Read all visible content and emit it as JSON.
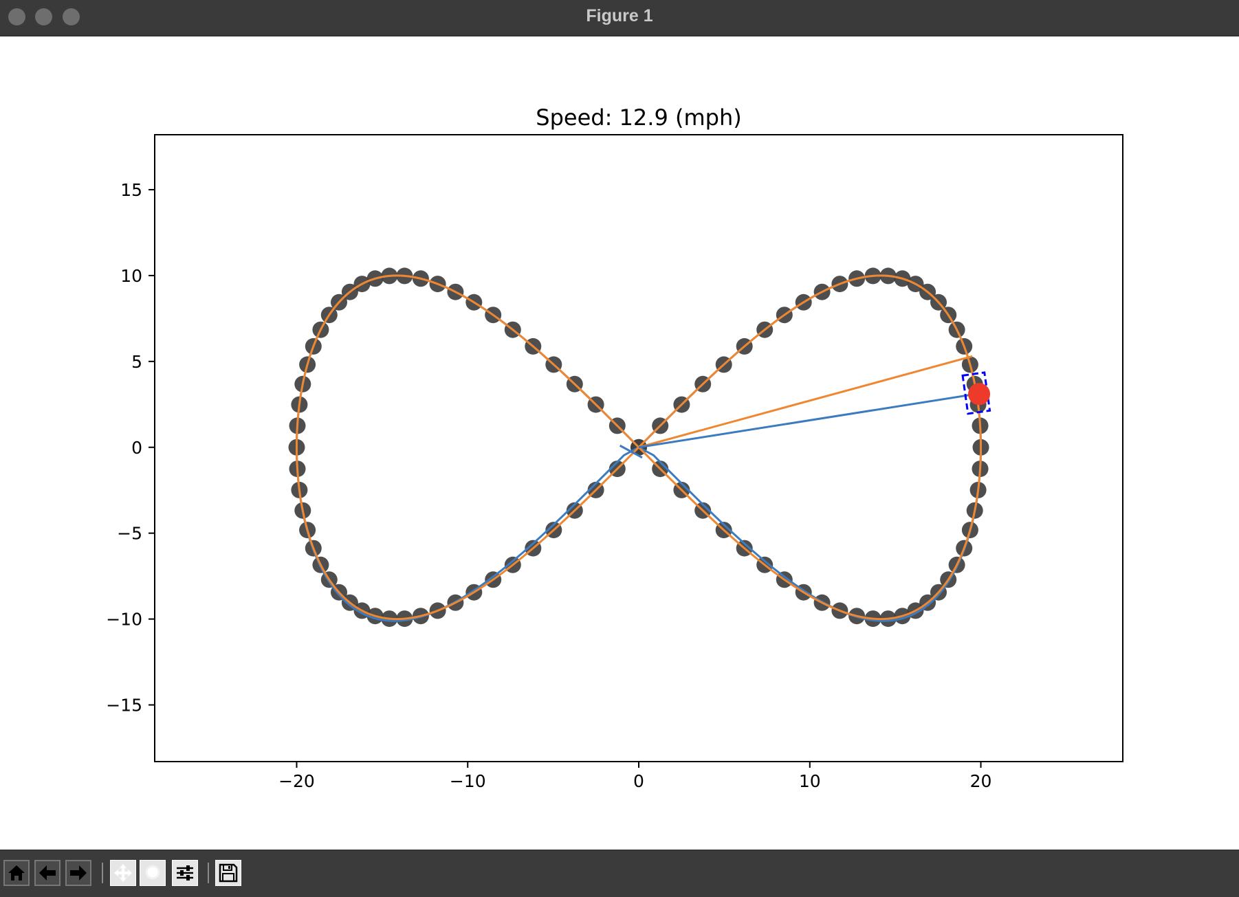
{
  "window": {
    "title": "Figure 1",
    "traffic_lights": [
      "close",
      "minimize",
      "zoom"
    ]
  },
  "toolbar": {
    "buttons": [
      {
        "icon": "home-icon",
        "action": "Home"
      },
      {
        "icon": "arrow-left-icon",
        "action": "Back"
      },
      {
        "icon": "arrow-right-icon",
        "action": "Forward"
      },
      {
        "icon": "move-icon",
        "action": "Pan"
      },
      {
        "icon": "zoom-icon",
        "action": "Zoom"
      },
      {
        "icon": "sliders-icon",
        "action": "Configure subplots"
      },
      {
        "icon": "save-icon",
        "action": "Save"
      }
    ]
  },
  "chart_data": {
    "type": "line",
    "title": "Speed: 12.9 (mph)",
    "xlabel": "",
    "ylabel": "",
    "xlim": [
      -28.3,
      28.3
    ],
    "ylim": [
      -18.3,
      18.2
    ],
    "xticks": [
      -20,
      -10,
      0,
      10,
      20
    ],
    "xtick_labels": [
      "−20",
      "−10",
      "0",
      "10",
      "20"
    ],
    "yticks": [
      -15,
      -10,
      -5,
      0,
      5,
      10,
      15
    ],
    "ytick_labels": [
      "−15",
      "−10",
      "−5",
      "0",
      "5",
      "10",
      "15"
    ],
    "grid": false,
    "legend": "none",
    "curve": "figure-eight: x = 20·cos(t), y = 20·sin(t)·cos(t), t from 0 to 2π",
    "waypoint_count": 100,
    "series": [
      {
        "role": "reference waypoints",
        "marker": "circle",
        "color": "#3f3f3f"
      },
      {
        "role": "driven path",
        "style": "line",
        "color": "#3b7bbf"
      },
      {
        "role": "planned path",
        "style": "line",
        "color": "#ef8630"
      }
    ],
    "vehicle": {
      "x": 19.9,
      "y": 3.1,
      "color": "#ee3a2a",
      "box_color": "#0000ff"
    },
    "rays": [
      {
        "from": [
          0,
          0
        ],
        "to": [
          19.5,
          5.3
        ],
        "color": "#ef8630"
      },
      {
        "from": [
          0,
          0
        ],
        "to": [
          19.7,
          3.1
        ],
        "color": "#3b7bbf"
      }
    ],
    "colors": {
      "waypoint": "#3f3f3f",
      "driven": "#3b7bbf",
      "planned": "#ef8630",
      "vehicle": "#ee3a2a",
      "box": "#0000ff"
    }
  }
}
